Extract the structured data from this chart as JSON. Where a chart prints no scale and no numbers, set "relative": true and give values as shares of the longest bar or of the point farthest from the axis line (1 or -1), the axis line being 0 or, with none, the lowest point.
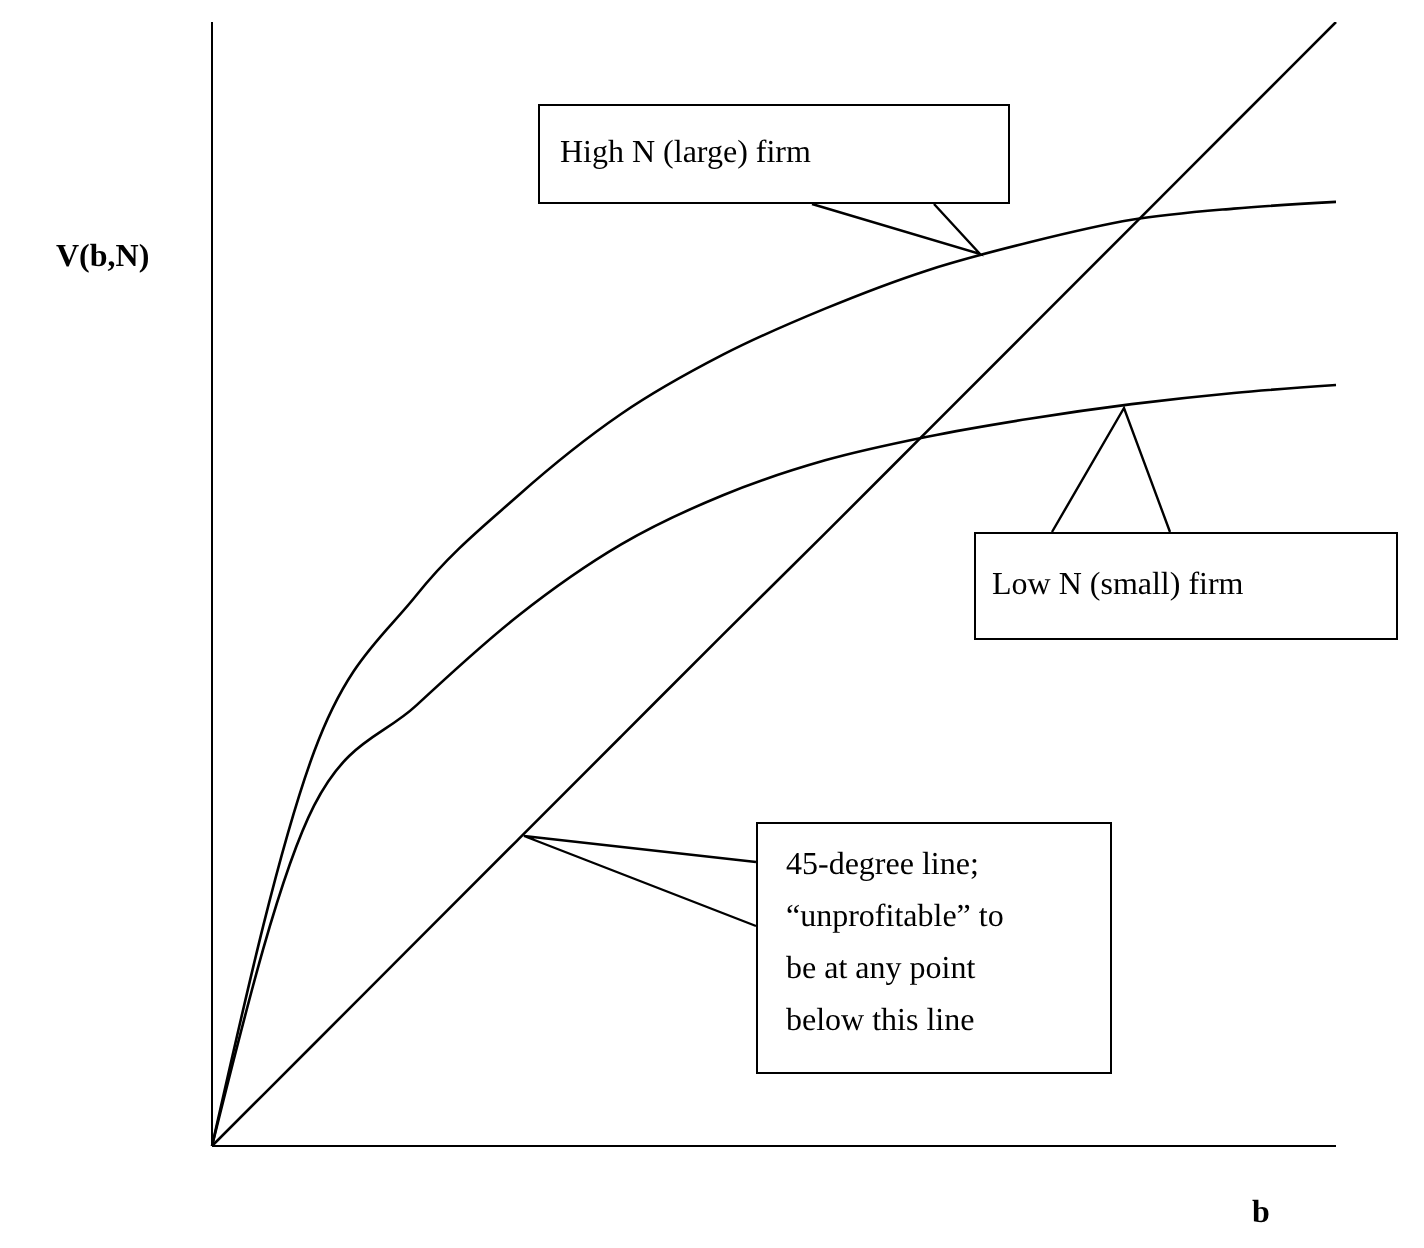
{
  "chart_data": {
    "type": "line",
    "relative": true,
    "xlabel": "b",
    "ylabel": "V(b,N)",
    "categories": [
      null,
      null,
      null,
      null,
      null,
      null,
      null,
      null,
      null,
      null,
      null,
      null
    ],
    "series": [
      {
        "color": "#000000",
        "values": [
          0,
          0.351,
          0.49,
          0.579,
          0.651,
          0.704,
          0.745,
          0.779,
          0.804,
          0.824,
          0.834,
          0.84
        ]
      },
      {
        "color": "#000000",
        "values": [
          0,
          0.303,
          0.392,
          0.472,
          0.535,
          0.579,
          0.61,
          0.631,
          0.647,
          0.66,
          0.67,
          0.677
        ]
      },
      {
        "color": "#000000",
        "values": [
          0,
          0.091,
          0.182,
          0.273,
          0.364,
          0.455,
          0.545,
          0.636,
          0.727,
          0.818,
          0.909,
          1
        ]
      }
    ],
    "annotations": [
      "High N (large) firm",
      "Low N (small) firm",
      "45-degree line; “unprofitable” to be at any point below this line"
    ],
    "grid": false,
    "legend": false,
    "marker": "none",
    "line_style": "solid"
  }
}
